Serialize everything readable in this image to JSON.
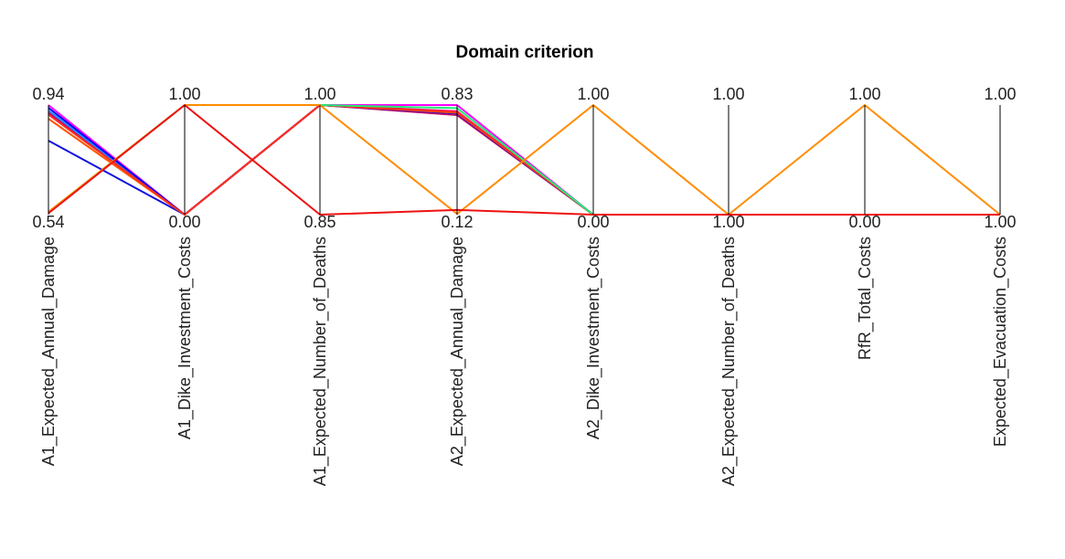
{
  "chart_data": {
    "type": "parallel_coordinates",
    "title": "Domain criterion",
    "axes": [
      {
        "name": "A1_Expected_Annual_Damage",
        "max_label": "0.94",
        "min_label": "0.54",
        "range": [
          0.54,
          0.94
        ]
      },
      {
        "name": "A1_Dike_Investment_Costs",
        "max_label": "1.00",
        "min_label": "0.00",
        "range": [
          0.0,
          1.0
        ]
      },
      {
        "name": "A1_Expected_Number_of_Deaths",
        "max_label": "1.00",
        "min_label": "0.85",
        "range": [
          0.85,
          1.0
        ]
      },
      {
        "name": "A2_Expected_Annual_Damage",
        "max_label": "0.83",
        "min_label": "0.12",
        "range": [
          0.12,
          0.83
        ]
      },
      {
        "name": "A2_Dike_Investment_Costs",
        "max_label": "1.00",
        "min_label": "0.00",
        "range": [
          0.0,
          1.0
        ]
      },
      {
        "name": "A2_Expected_Number_of_Deaths",
        "max_label": "1.00",
        "min_label": "1.00",
        "range": [
          0.0,
          1.0
        ]
      },
      {
        "name": "RfR_Total_Costs",
        "max_label": "1.00",
        "min_label": "0.00",
        "range": [
          0.0,
          1.0
        ]
      },
      {
        "name": "Expected_Evacuation_Costs",
        "max_label": "1.00",
        "min_label": "1.00",
        "range": [
          0.0,
          1.0
        ]
      }
    ],
    "series": [
      {
        "color": "#ff00ff",
        "values": [
          0.94,
          0.0,
          1.0,
          0.83,
          0.0,
          0.0,
          0.0,
          0.0
        ]
      },
      {
        "color": "#ff1493",
        "values": [
          0.92,
          0.0,
          1.0,
          0.79,
          0.0,
          0.0,
          0.0,
          0.0
        ]
      },
      {
        "color": "#e8005a",
        "values": [
          0.91,
          0.0,
          1.0,
          0.78,
          0.0,
          0.0,
          0.0,
          0.0
        ]
      },
      {
        "color": "#cc0066",
        "values": [
          0.915,
          0.0,
          1.0,
          0.765,
          0.0,
          0.0,
          0.0,
          0.0
        ]
      },
      {
        "color": "#1e90ff",
        "values": [
          0.92,
          0.0,
          1.0,
          0.78,
          0.0,
          0.0,
          0.0,
          0.0
        ]
      },
      {
        "color": "#0000ff",
        "values": [
          0.93,
          0.0,
          1.0,
          0.775,
          0.0,
          0.0,
          0.0,
          0.0
        ]
      },
      {
        "color": "#1010dd",
        "values": [
          0.81,
          0.0,
          1.0,
          0.775,
          0.0,
          0.0,
          0.0,
          0.0
        ]
      },
      {
        "color": "#ff5500",
        "values": [
          0.89,
          0.0,
          1.0,
          0.78,
          0.0,
          0.0,
          0.0,
          0.0
        ]
      },
      {
        "color": "#ff2d20",
        "values": [
          0.905,
          0.0,
          1.0,
          0.785,
          0.0,
          0.0,
          0.0,
          0.0
        ]
      },
      {
        "color": "#22ee77",
        "values": [
          0.55,
          1.0,
          1.0,
          0.81,
          0.0,
          0.0,
          0.0,
          0.0
        ]
      },
      {
        "color": "#ff8c00",
        "values": [
          0.55,
          1.0,
          1.0,
          0.125,
          1.0,
          0.0,
          1.0,
          0.0
        ]
      },
      {
        "color": "#ee1111",
        "values": [
          0.545,
          1.0,
          0.85,
          0.15,
          0.0,
          0.0,
          0.0,
          0.0
        ]
      }
    ]
  }
}
